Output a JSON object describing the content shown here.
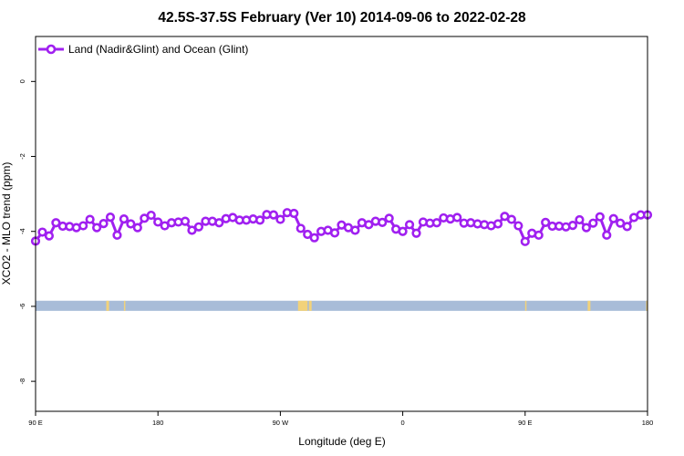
{
  "chart_data": {
    "type": "line",
    "title": "42.5S-37.5S February (Ver 10)   2014-09-06 to 2022-02-28",
    "xlabel": "Longitude (deg E)",
    "ylabel": "XCO2 - MLO trend (ppm)",
    "xlim": [
      90,
      540
    ],
    "ylim": [
      -8.8,
      1.2
    ],
    "x_ticks": [
      {
        "value": 90,
        "label": "90 E"
      },
      {
        "value": 180,
        "label": "180"
      },
      {
        "value": 270,
        "label": "90 W"
      },
      {
        "value": 360,
        "label": "0"
      },
      {
        "value": 450,
        "label": "90 E"
      },
      {
        "value": 540,
        "label": "180"
      }
    ],
    "y_ticks": [
      {
        "value": 0,
        "label": "0"
      },
      {
        "value": -2,
        "label": "-2"
      },
      {
        "value": -4,
        "label": "-4"
      },
      {
        "value": -6,
        "label": "-6"
      },
      {
        "value": -8,
        "label": "-8"
      }
    ],
    "legend": {
      "position": "top-left"
    },
    "series": [
      {
        "name": "Land (Nadir&Glint) and Ocean (Glint)",
        "color": "#a020f0",
        "x": [
          90,
          95,
          100,
          105,
          110,
          115,
          120,
          125,
          130,
          135,
          140,
          145,
          150,
          155,
          160,
          165,
          170,
          175,
          180,
          185,
          190,
          195,
          200,
          205,
          210,
          215,
          220,
          225,
          230,
          235,
          240,
          245,
          250,
          255,
          260,
          265,
          270,
          275,
          280,
          285,
          290,
          295,
          300,
          305,
          310,
          315,
          320,
          325,
          330,
          335,
          340,
          345,
          350,
          355,
          360,
          365,
          370,
          375,
          380,
          385,
          390,
          395,
          400,
          405,
          410,
          415,
          420,
          425,
          430,
          435,
          440,
          445,
          450,
          455,
          460,
          465,
          470,
          475,
          480,
          485,
          490,
          495,
          500,
          505,
          510,
          515,
          520,
          525,
          530,
          535,
          540
        ],
        "y": [
          -4.26,
          -4.02,
          -4.12,
          -3.77,
          -3.86,
          -3.87,
          -3.9,
          -3.85,
          -3.68,
          -3.9,
          -3.79,
          -3.62,
          -4.1,
          -3.67,
          -3.8,
          -3.9,
          -3.65,
          -3.57,
          -3.75,
          -3.85,
          -3.77,
          -3.75,
          -3.73,
          -3.97,
          -3.88,
          -3.73,
          -3.73,
          -3.77,
          -3.66,
          -3.63,
          -3.7,
          -3.7,
          -3.67,
          -3.7,
          -3.55,
          -3.56,
          -3.68,
          -3.5,
          -3.52,
          -3.92,
          -4.08,
          -4.17,
          -4.0,
          -3.97,
          -4.04,
          -3.83,
          -3.9,
          -3.97,
          -3.77,
          -3.82,
          -3.73,
          -3.76,
          -3.65,
          -3.94,
          -4.0,
          -3.82,
          -4.05,
          -3.75,
          -3.78,
          -3.77,
          -3.64,
          -3.67,
          -3.63,
          -3.78,
          -3.77,
          -3.8,
          -3.82,
          -3.85,
          -3.8,
          -3.6,
          -3.68,
          -3.85,
          -4.27,
          -4.05,
          -4.1,
          -3.76,
          -3.86,
          -3.86,
          -3.88,
          -3.84,
          -3.69,
          -3.9,
          -3.78,
          -3.61,
          -4.1,
          -3.66,
          -3.78,
          -3.87,
          -3.63,
          -3.56,
          -3.56
        ]
      }
    ],
    "surface_band": {
      "y_range": [
        -6.12,
        -5.85
      ],
      "ocean_color": "#a8bcd8",
      "land_color": "#f2d27a",
      "land_segments": [
        [
          142,
          144
        ],
        [
          155,
          156
        ],
        [
          283,
          290
        ],
        [
          291,
          293
        ],
        [
          450,
          451
        ],
        [
          496,
          498
        ],
        [
          539,
          540
        ]
      ]
    }
  }
}
